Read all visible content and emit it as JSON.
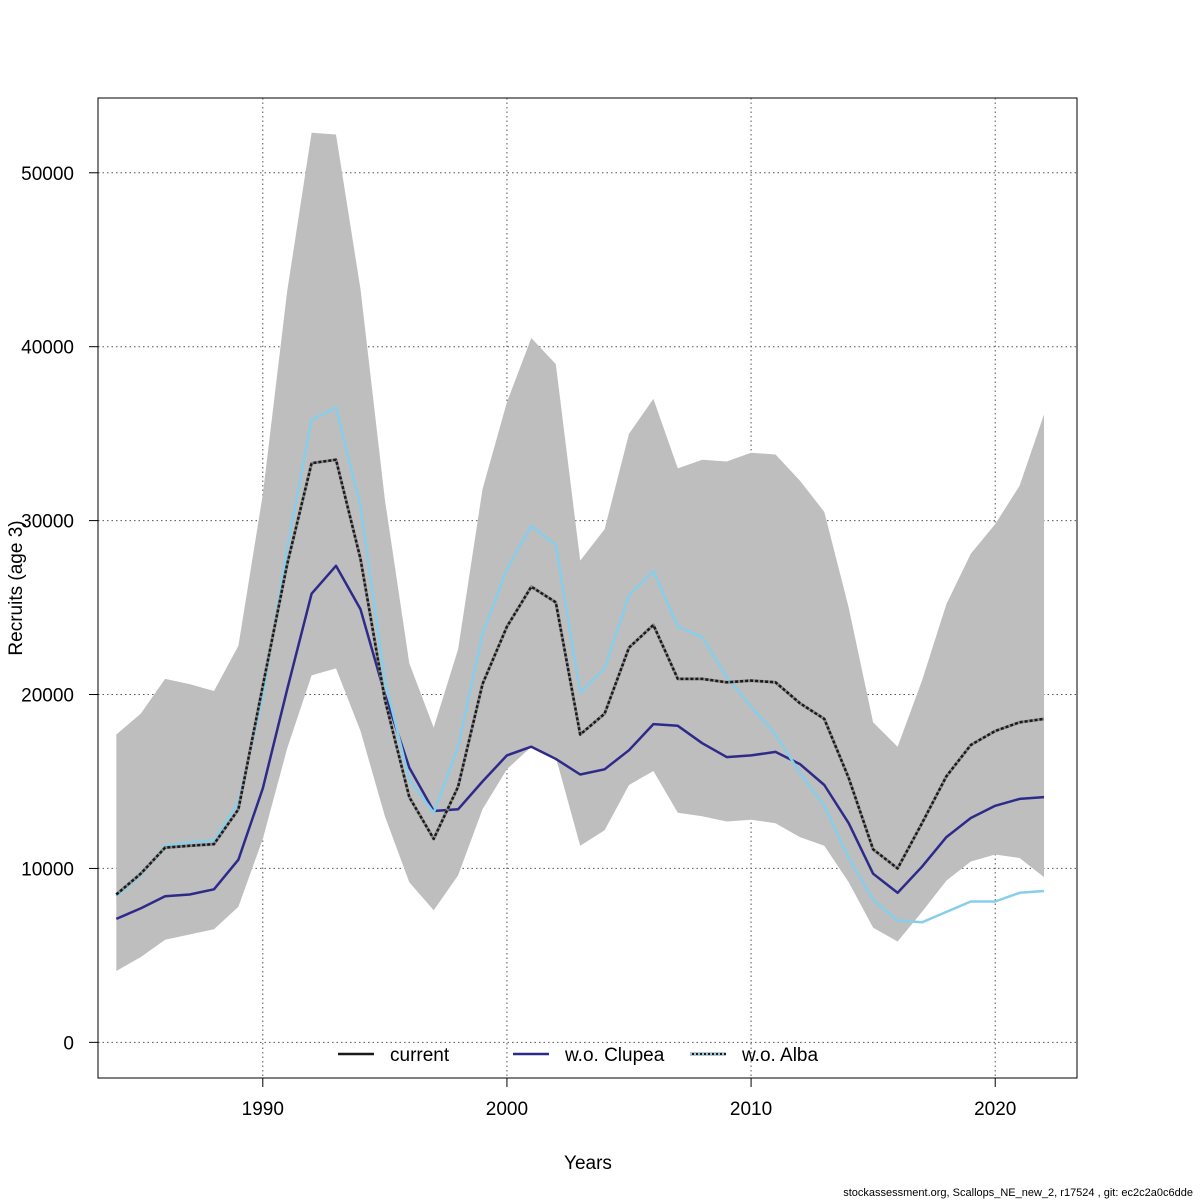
{
  "chart_data": {
    "type": "line",
    "xlabel": "Years",
    "ylabel": "Recruits (age 3)",
    "xlim": [
      1983.25,
      2023.35
    ],
    "ylim": [
      -2050,
      54300
    ],
    "x_ticks": [
      1990,
      2000,
      2010,
      2020
    ],
    "y_ticks": [
      0,
      10000,
      20000,
      30000,
      40000,
      50000
    ],
    "grid": true,
    "legend_position": "bottom",
    "x": [
      1984,
      1985,
      1986,
      1987,
      1988,
      1989,
      1990,
      1991,
      1992,
      1993,
      1994,
      1995,
      1996,
      1997,
      1998,
      1999,
      2000,
      2001,
      2002,
      2003,
      2004,
      2005,
      2006,
      2007,
      2008,
      2009,
      2010,
      2011,
      2012,
      2013,
      2014,
      2015,
      2016,
      2017,
      2018,
      2019,
      2020,
      2021,
      2022
    ],
    "confidence_band": {
      "color": "#bebebe",
      "upper": [
        17700,
        18900,
        20900,
        20600,
        20200,
        22800,
        31500,
        43200,
        52300,
        52200,
        43300,
        31200,
        21800,
        18100,
        22600,
        31800,
        36800,
        40500,
        39000,
        27700,
        29500,
        35000,
        37000,
        33000,
        33500,
        33400,
        33900,
        33800,
        32300,
        30500,
        25000,
        18400,
        17000,
        20800,
        25200,
        28100,
        29800,
        32000,
        36100
      ],
      "lower": [
        4100,
        4900,
        5900,
        6200,
        6500,
        7800,
        11700,
        16900,
        21100,
        21500,
        17900,
        13000,
        9200,
        7600,
        9600,
        13400,
        15700,
        17000,
        16400,
        11300,
        12200,
        14800,
        15600,
        13200,
        13000,
        12700,
        12800,
        12600,
        11800,
        11300,
        9200,
        6600,
        5800,
        7500,
        9300,
        10400,
        10800,
        10600,
        9500
      ]
    },
    "series": [
      {
        "name": "current",
        "color": "#1a1a1a",
        "style": "dashed-over-solid",
        "values": [
          8500,
          9700,
          11200,
          11300,
          11400,
          13400,
          20500,
          27500,
          33300,
          33500,
          27800,
          19700,
          14100,
          11700,
          14700,
          20600,
          23900,
          26200,
          25300,
          17700,
          18900,
          22700,
          24000,
          20900,
          20900,
          20700,
          20800,
          20700,
          19500,
          18600,
          15200,
          11100,
          10000,
          12600,
          15300,
          17100,
          17900,
          18400,
          18600
        ]
      },
      {
        "name": "w.o. Clupea",
        "color": "#2e2a8a",
        "style": "solid",
        "values": [
          7100,
          7700,
          8400,
          8500,
          8800,
          10500,
          14600,
          20300,
          25800,
          27400,
          24900,
          20000,
          15800,
          13300,
          13400,
          15000,
          16500,
          17000,
          16300,
          15400,
          15700,
          16800,
          18300,
          18200,
          17200,
          16400,
          16500,
          16700,
          16000,
          14800,
          12600,
          9700,
          8600,
          10100,
          11800,
          12900,
          13600,
          14000,
          14100
        ]
      },
      {
        "name": "w.o. Alba",
        "color": "#87ceeb",
        "style": "solid",
        "values": [
          8400,
          9600,
          11300,
          11500,
          11600,
          13800,
          19900,
          28400,
          35800,
          36500,
          30800,
          20800,
          15100,
          13200,
          17000,
          23500,
          27200,
          29700,
          28600,
          20100,
          21500,
          25700,
          27100,
          23900,
          23300,
          21000,
          19300,
          17700,
          15500,
          13600,
          10600,
          8200,
          7000,
          6900,
          7500,
          8100,
          8100,
          8600,
          8700
        ]
      }
    ]
  },
  "footer": {
    "text": "stockassessment.org, Scallops_NE_new_2, r17524 , git: ec2c2a0c6dde"
  }
}
